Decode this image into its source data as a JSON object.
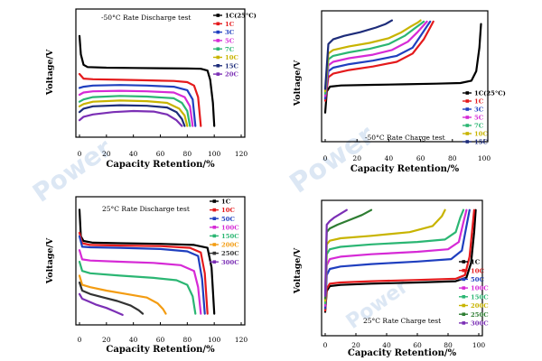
{
  "chart_data": [
    {
      "type": "line",
      "title": "-50°C Rate Discharge test",
      "xlabel": "Capacity Retention/%",
      "ylabel": "Voltage/V",
      "xlim": [
        0,
        120
      ],
      "xticks": [
        "0",
        "20",
        "40",
        "60",
        "80",
        "100",
        "120"
      ],
      "legend_position": "top-right",
      "series": [
        {
          "name": "1C(25°C)",
          "color": "#000000",
          "x": [
            0,
            1,
            3,
            6,
            20,
            40,
            60,
            80,
            90,
            95,
            97,
            99,
            100
          ],
          "y": [
            0.83,
            0.67,
            0.58,
            0.56,
            0.555,
            0.552,
            0.55,
            0.548,
            0.545,
            0.53,
            0.45,
            0.25,
            0.05
          ]
        },
        {
          "name": "1C",
          "color": "#e41a1c",
          "x": [
            0,
            3,
            10,
            30,
            50,
            70,
            80,
            85,
            88,
            90
          ],
          "y": [
            0.5,
            0.46,
            0.455,
            0.45,
            0.445,
            0.44,
            0.43,
            0.4,
            0.3,
            0.05
          ]
        },
        {
          "name": "3C",
          "color": "#1f3fbf",
          "x": [
            0,
            3,
            10,
            30,
            50,
            70,
            80,
            84,
            86
          ],
          "y": [
            0.38,
            0.39,
            0.4,
            0.405,
            0.4,
            0.39,
            0.36,
            0.28,
            0.05
          ]
        },
        {
          "name": "5C",
          "color": "#d62ad6",
          "x": [
            0,
            3,
            10,
            30,
            50,
            70,
            78,
            82,
            84
          ],
          "y": [
            0.32,
            0.34,
            0.35,
            0.355,
            0.35,
            0.34,
            0.3,
            0.22,
            0.05
          ]
        },
        {
          "name": "7C",
          "color": "#2bb673",
          "x": [
            0,
            3,
            10,
            30,
            50,
            70,
            76,
            80,
            82
          ],
          "y": [
            0.26,
            0.28,
            0.3,
            0.31,
            0.305,
            0.29,
            0.25,
            0.18,
            0.05
          ]
        },
        {
          "name": "10C",
          "color": "#c8b400",
          "x": [
            0,
            3,
            10,
            30,
            50,
            65,
            74,
            78,
            80
          ],
          "y": [
            0.22,
            0.24,
            0.26,
            0.27,
            0.265,
            0.25,
            0.2,
            0.14,
            0.05
          ]
        },
        {
          "name": "15C",
          "color": "#1d2c7a",
          "x": [
            0,
            3,
            10,
            30,
            50,
            65,
            72,
            76,
            78
          ],
          "y": [
            0.17,
            0.2,
            0.22,
            0.23,
            0.225,
            0.21,
            0.17,
            0.11,
            0.05
          ]
        },
        {
          "name": "20C",
          "color": "#7b2fb5",
          "x": [
            0,
            3,
            10,
            25,
            40,
            55,
            65,
            72,
            76
          ],
          "y": [
            0.1,
            0.13,
            0.15,
            0.17,
            0.18,
            0.175,
            0.15,
            0.1,
            0.05
          ]
        }
      ]
    },
    {
      "type": "line",
      "title": "-50°C Rate Charge test",
      "xlabel": "Capacity Retention/%",
      "ylabel": "Voltage/V",
      "xlim": [
        0,
        100
      ],
      "xticks": [
        "0",
        "20",
        "40",
        "60",
        "80",
        "100"
      ],
      "legend_position": "bottom-right",
      "series": [
        {
          "name": "1C(25°C)",
          "color": "#000000",
          "x": [
            0,
            1,
            3,
            10,
            30,
            50,
            70,
            85,
            92,
            95,
            97,
            98
          ],
          "y": [
            0.2,
            0.38,
            0.42,
            0.43,
            0.435,
            0.44,
            0.445,
            0.45,
            0.47,
            0.55,
            0.75,
            0.95
          ]
        },
        {
          "name": "1C",
          "color": "#e41a1c",
          "x": [
            0,
            2,
            5,
            15,
            30,
            45,
            55,
            62,
            66,
            68
          ],
          "y": [
            0.3,
            0.5,
            0.53,
            0.56,
            0.59,
            0.63,
            0.7,
            0.82,
            0.92,
            0.97
          ]
        },
        {
          "name": "3C",
          "color": "#1f3fbf",
          "x": [
            0,
            2,
            5,
            15,
            30,
            45,
            55,
            60,
            64,
            66
          ],
          "y": [
            0.32,
            0.55,
            0.58,
            0.61,
            0.64,
            0.68,
            0.75,
            0.85,
            0.93,
            0.97
          ]
        },
        {
          "name": "5C",
          "color": "#d62ad6",
          "x": [
            0,
            2,
            5,
            15,
            30,
            42,
            52,
            58,
            62,
            64
          ],
          "y": [
            0.34,
            0.6,
            0.63,
            0.66,
            0.69,
            0.73,
            0.8,
            0.88,
            0.94,
            0.97
          ]
        },
        {
          "name": "7C",
          "color": "#2bb673",
          "x": [
            0,
            2,
            5,
            15,
            28,
            40,
            50,
            56,
            60,
            62
          ],
          "y": [
            0.36,
            0.65,
            0.68,
            0.71,
            0.74,
            0.78,
            0.85,
            0.91,
            0.95,
            0.97
          ]
        },
        {
          "name": "10C",
          "color": "#c8b400",
          "x": [
            0,
            2,
            5,
            15,
            28,
            40,
            48,
            54,
            58,
            60
          ],
          "y": [
            0.38,
            0.7,
            0.73,
            0.76,
            0.79,
            0.83,
            0.88,
            0.93,
            0.96,
            0.98
          ]
        },
        {
          "name": "15C",
          "color": "#1d2c7a",
          "x": [
            0,
            2,
            5,
            12,
            22,
            32,
            38,
            42
          ],
          "y": [
            0.4,
            0.78,
            0.82,
            0.85,
            0.88,
            0.92,
            0.95,
            0.98
          ]
        }
      ]
    },
    {
      "type": "line",
      "title": "25°C Rate Discharge test",
      "xlabel": "Capacity Retention/%",
      "ylabel": "Voltage/V",
      "xlim": [
        0,
        120
      ],
      "xticks": [
        "0",
        "20",
        "40",
        "60",
        "80",
        "100",
        "120"
      ],
      "legend_position": "top-right",
      "series": [
        {
          "name": "1C",
          "color": "#000000",
          "x": [
            0,
            1,
            3,
            10,
            30,
            60,
            85,
            95,
            98,
            100
          ],
          "y": [
            0.95,
            0.72,
            0.68,
            0.665,
            0.66,
            0.655,
            0.645,
            0.62,
            0.45,
            0.05
          ]
        },
        {
          "name": "10C",
          "color": "#e41a1c",
          "x": [
            0,
            2,
            8,
            30,
            60,
            82,
            90,
            93,
            95
          ],
          "y": [
            0.75,
            0.66,
            0.645,
            0.64,
            0.635,
            0.62,
            0.58,
            0.4,
            0.05
          ]
        },
        {
          "name": "50C",
          "color": "#1f3fbf",
          "x": [
            0,
            2,
            8,
            30,
            60,
            80,
            88,
            91,
            93
          ],
          "y": [
            0.72,
            0.63,
            0.625,
            0.62,
            0.61,
            0.59,
            0.55,
            0.35,
            0.05
          ]
        },
        {
          "name": "100C",
          "color": "#d62ad6",
          "x": [
            0,
            2,
            8,
            30,
            55,
            75,
            85,
            88,
            90
          ],
          "y": [
            0.6,
            0.52,
            0.51,
            0.5,
            0.49,
            0.47,
            0.42,
            0.28,
            0.05
          ]
        },
        {
          "name": "150C",
          "color": "#2bb673",
          "x": [
            0,
            2,
            8,
            30,
            55,
            72,
            80,
            84,
            86
          ],
          "y": [
            0.5,
            0.42,
            0.4,
            0.38,
            0.36,
            0.34,
            0.3,
            0.2,
            0.05
          ]
        },
        {
          "name": "200C",
          "color": "#f39c12",
          "x": [
            0,
            2,
            8,
            20,
            35,
            50,
            58,
            62,
            64
          ],
          "y": [
            0.38,
            0.3,
            0.28,
            0.25,
            0.22,
            0.19,
            0.14,
            0.09,
            0.05
          ]
        },
        {
          "name": "250C",
          "color": "#333333",
          "x": [
            0,
            2,
            8,
            18,
            28,
            38,
            44,
            47
          ],
          "y": [
            0.32,
            0.25,
            0.22,
            0.19,
            0.16,
            0.12,
            0.08,
            0.05
          ]
        },
        {
          "name": "300C",
          "color": "#7b2fb5",
          "x": [
            0,
            2,
            6,
            12,
            20,
            26,
            30,
            32
          ],
          "y": [
            0.22,
            0.18,
            0.16,
            0.13,
            0.1,
            0.07,
            0.05,
            0.04
          ]
        }
      ]
    },
    {
      "type": "line",
      "title": "25°C Rate Charge test",
      "xlabel": "Capacity Retention/%",
      "ylabel": "Voltage/V",
      "xlim": [
        0,
        100
      ],
      "xticks": [
        "0",
        "20",
        "40",
        "60",
        "80",
        "100"
      ],
      "legend_position": "bottom-right",
      "series": [
        {
          "name": "1C",
          "color": "#000000",
          "x": [
            0,
            1,
            3,
            10,
            30,
            60,
            85,
            92,
            95,
            97,
            98
          ],
          "y": [
            0.15,
            0.32,
            0.36,
            0.37,
            0.38,
            0.39,
            0.4,
            0.43,
            0.55,
            0.8,
            0.98
          ]
        },
        {
          "name": "10C",
          "color": "#e41a1c",
          "x": [
            0,
            1,
            3,
            10,
            30,
            60,
            85,
            91,
            94,
            96,
            97
          ],
          "y": [
            0.16,
            0.34,
            0.38,
            0.39,
            0.4,
            0.41,
            0.42,
            0.45,
            0.6,
            0.85,
            0.98
          ]
        },
        {
          "name": "50C",
          "color": "#1f3fbf",
          "x": [
            0,
            1,
            3,
            10,
            30,
            60,
            82,
            89,
            92,
            94
          ],
          "y": [
            0.18,
            0.45,
            0.5,
            0.52,
            0.54,
            0.56,
            0.58,
            0.65,
            0.85,
            0.98
          ]
        },
        {
          "name": "100C",
          "color": "#d62ad6",
          "x": [
            0,
            1,
            3,
            10,
            30,
            60,
            80,
            87,
            90,
            92
          ],
          "y": [
            0.2,
            0.53,
            0.58,
            0.6,
            0.62,
            0.64,
            0.66,
            0.72,
            0.88,
            0.98
          ]
        },
        {
          "name": "150C",
          "color": "#2bb673",
          "x": [
            0,
            1,
            3,
            10,
            30,
            60,
            78,
            85,
            88,
            90
          ],
          "y": [
            0.22,
            0.62,
            0.66,
            0.68,
            0.7,
            0.72,
            0.74,
            0.8,
            0.92,
            0.98
          ]
        },
        {
          "name": "200C",
          "color": "#c8b400",
          "x": [
            0,
            1,
            3,
            10,
            30,
            55,
            70,
            76,
            78
          ],
          "y": [
            0.24,
            0.7,
            0.73,
            0.75,
            0.77,
            0.8,
            0.85,
            0.93,
            0.98
          ]
        },
        {
          "name": "250C",
          "color": "#2e7d32",
          "x": [
            0,
            1,
            3,
            8,
            16,
            24,
            30
          ],
          "y": [
            0.26,
            0.8,
            0.83,
            0.86,
            0.9,
            0.94,
            0.98
          ]
        },
        {
          "name": "300C",
          "color": "#7b2fb5",
          "x": [
            0,
            1,
            3,
            6,
            10,
            14
          ],
          "y": [
            0.28,
            0.86,
            0.89,
            0.92,
            0.95,
            0.98
          ]
        }
      ]
    }
  ]
}
